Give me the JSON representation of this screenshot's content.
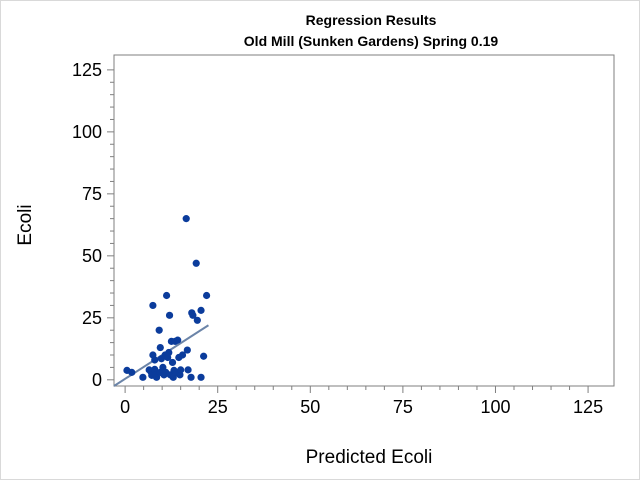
{
  "chart_data": {
    "type": "scatter",
    "title": "Regression Results",
    "subtitle": "Old Mill (Sunken Gardens) Spring 0.19",
    "xlabel": "Predicted Ecoli",
    "ylabel": "Ecoli",
    "xlim": [
      -3,
      132
    ],
    "ylim": [
      -2.5,
      131
    ],
    "xticks": [
      0,
      25,
      50,
      75,
      100,
      125
    ],
    "yticks": [
      0,
      25,
      50,
      75,
      100,
      125
    ],
    "grid": false,
    "colors": {
      "points": "#0b3c9c",
      "fit_line": "#6b84a8",
      "frame": "#7f7f7f"
    },
    "points": [
      [
        0.5,
        3.8
      ],
      [
        1.8,
        3.0
      ],
      [
        4.8,
        1.0
      ],
      [
        6.5,
        4.0
      ],
      [
        7.0,
        3.2
      ],
      [
        7.2,
        1.8
      ],
      [
        7.5,
        30.0
      ],
      [
        7.5,
        10.0
      ],
      [
        8.0,
        8.0
      ],
      [
        8.0,
        4.2
      ],
      [
        8.2,
        2.0
      ],
      [
        8.5,
        1.0
      ],
      [
        9.2,
        20.0
      ],
      [
        9.5,
        13.0
      ],
      [
        9.5,
        3.0
      ],
      [
        9.8,
        8.5
      ],
      [
        10.2,
        5.0
      ],
      [
        10.5,
        2.0
      ],
      [
        10.8,
        10.0
      ],
      [
        11.0,
        3.0
      ],
      [
        11.2,
        34.0
      ],
      [
        11.5,
        9.0
      ],
      [
        11.8,
        11.0
      ],
      [
        12.0,
        26.0
      ],
      [
        12.2,
        2.0
      ],
      [
        12.5,
        15.5
      ],
      [
        12.8,
        7.0
      ],
      [
        13.0,
        1.0
      ],
      [
        13.2,
        3.8
      ],
      [
        13.5,
        15.5
      ],
      [
        13.8,
        3.0
      ],
      [
        14.2,
        16.0
      ],
      [
        14.5,
        9.0
      ],
      [
        14.8,
        2.0
      ],
      [
        15.0,
        4.0
      ],
      [
        15.5,
        10.0
      ],
      [
        16.5,
        65.0
      ],
      [
        16.8,
        12.0
      ],
      [
        17.0,
        4.0
      ],
      [
        17.8,
        1.0
      ],
      [
        18.0,
        27.0
      ],
      [
        18.3,
        26.0
      ],
      [
        19.2,
        47.0
      ],
      [
        19.5,
        24.0
      ],
      [
        20.5,
        28.0
      ],
      [
        20.5,
        1.0
      ],
      [
        21.2,
        9.5
      ],
      [
        22.0,
        34.0
      ]
    ],
    "fit_line": [
      [
        -3,
        -2.5
      ],
      [
        22.5,
        22.0
      ]
    ]
  }
}
